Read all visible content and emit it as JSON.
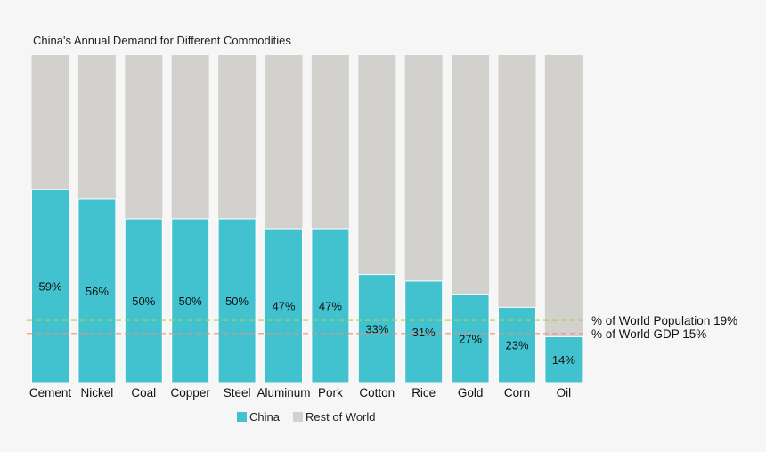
{
  "chart_data": {
    "type": "bar",
    "stacked": true,
    "percent_stacked": true,
    "title": "China's Annual Demand for Different Commodities",
    "categories": [
      "Cement",
      "Nickel",
      "Coal",
      "Copper",
      "Steel",
      "Aluminum",
      "Pork",
      "Cotton",
      "Rice",
      "Gold",
      "Corn",
      "Oil"
    ],
    "series": [
      {
        "name": "China",
        "values": [
          59,
          56,
          50,
          50,
          50,
          47,
          47,
          33,
          31,
          27,
          23,
          14
        ],
        "color": "#42c1cf"
      },
      {
        "name": "Rest of World",
        "values": [
          41,
          44,
          50,
          50,
          50,
          53,
          53,
          67,
          69,
          73,
          77,
          86
        ],
        "color": "#d3d1ce"
      }
    ],
    "data_labels": [
      "59%",
      "56%",
      "50%",
      "50%",
      "50%",
      "47%",
      "47%",
      "33%",
      "31%",
      "27%",
      "23%",
      "14%"
    ],
    "ylim": [
      0,
      100
    ],
    "reference_lines": [
      {
        "label": "% of World Population 19%",
        "value": 19,
        "color": "#a8d44a"
      },
      {
        "label": "% of World GDP 15%",
        "value": 15,
        "color": "#ec8c84"
      }
    ],
    "legend_position": "bottom-center",
    "grid": false
  }
}
